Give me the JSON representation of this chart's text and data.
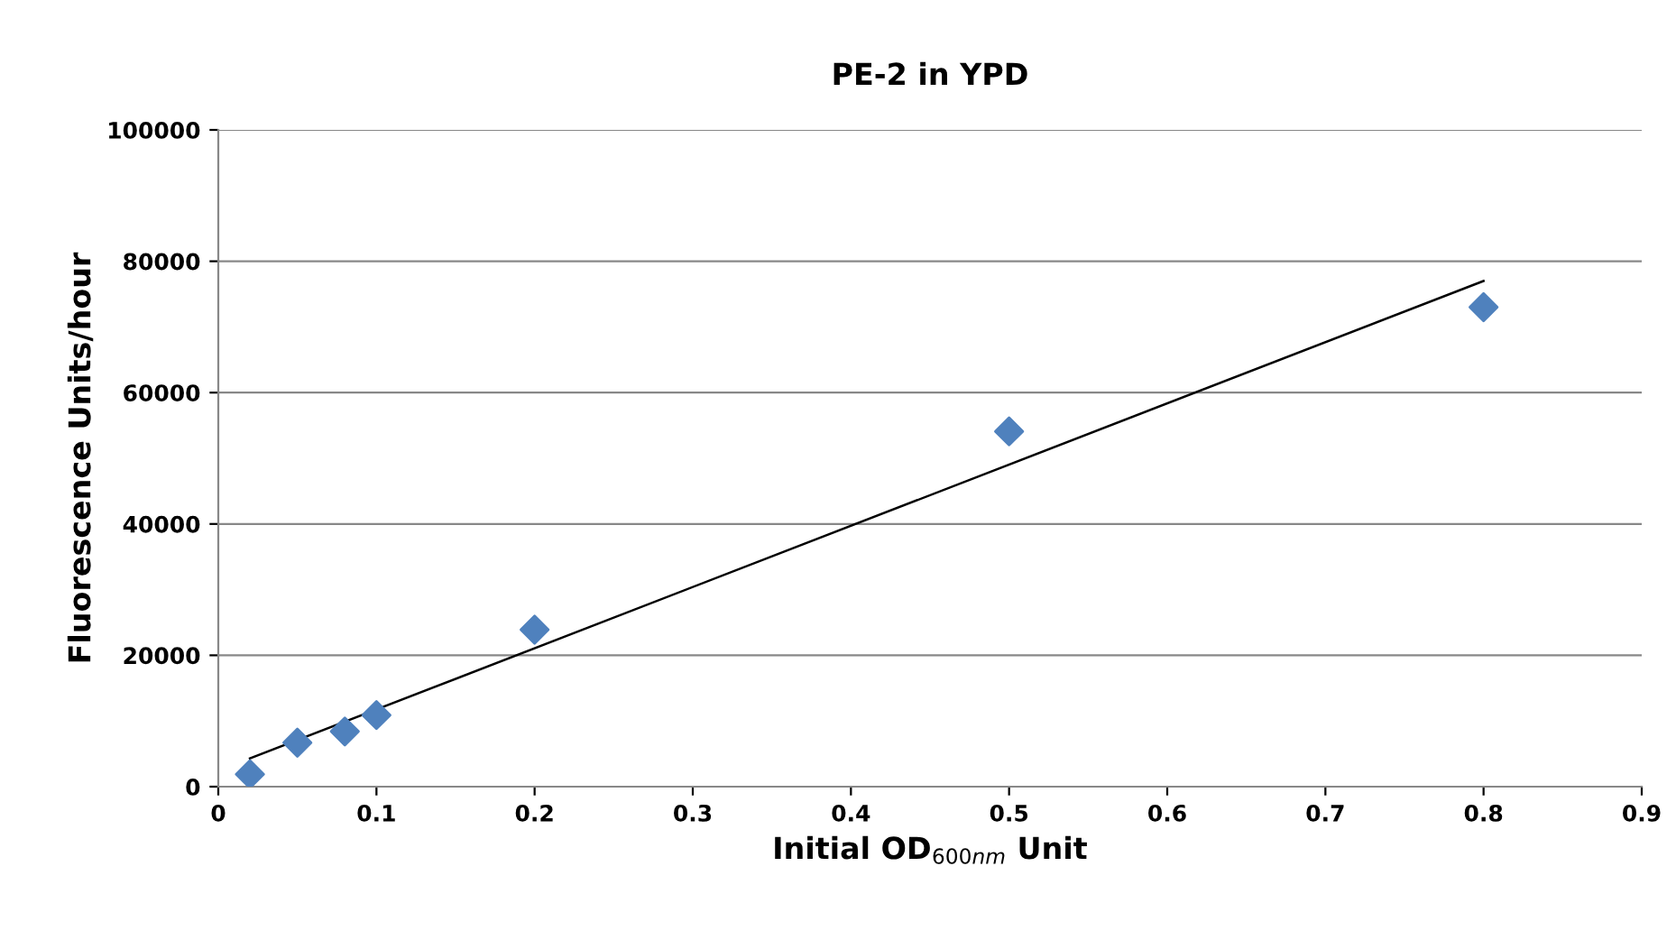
{
  "chart_data": {
    "type": "scatter",
    "title": "PE-2 in YPD",
    "xlabel": "Initial OD$_{600nm}$ Unit",
    "ylabel": "Fluorescence Units/hour",
    "series": [
      {
        "color": "#4f81bd",
        "marker": "diamond",
        "x": [
          0.02,
          0.05,
          0.08,
          0.1,
          0.2,
          0.5,
          0.8
        ],
        "values": [
          1900,
          6700,
          8400,
          10900,
          23900,
          54100,
          73000
        ]
      },
      {
        "type": "line",
        "color": "#000000",
        "marker": "none",
        "x": [
          0.02,
          0.8
        ],
        "values": [
          4300,
          77000
        ]
      }
    ],
    "xlim": [
      0,
      0.9
    ],
    "xticks": [
      0,
      0.1,
      0.2,
      0.3,
      0.4,
      0.5,
      0.6,
      0.7,
      0.8,
      0.9
    ],
    "ylim": [
      0,
      100000
    ],
    "yticks": [
      0,
      20000,
      40000,
      60000,
      80000,
      100000
    ],
    "grid": "y",
    "legend": false
  }
}
